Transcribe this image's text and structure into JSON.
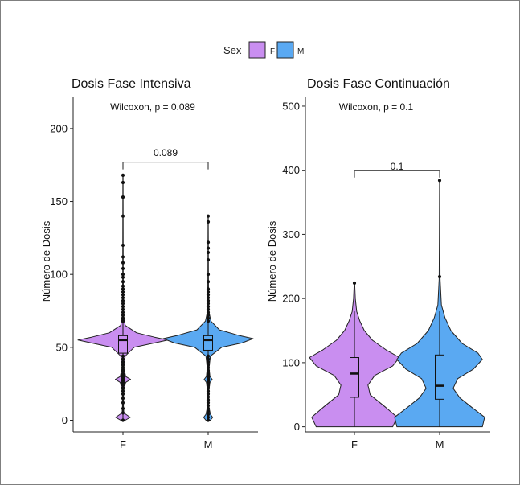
{
  "legend": {
    "title": "Sex",
    "entries": [
      {
        "label": "F",
        "color": "#c98ef0"
      },
      {
        "label": "M",
        "color": "#5aa9f2"
      }
    ],
    "position": "top"
  },
  "chart_data": [
    {
      "type": "violin",
      "title": "Dosis Fase Intensiva",
      "subtitle": "Wilcoxon, p = 0.089",
      "xlabel": "",
      "ylabel": "Número de Dosis",
      "categories": [
        "F",
        "M"
      ],
      "ylim": [
        -8,
        222
      ],
      "yticks": [
        0,
        50,
        100,
        150,
        200
      ],
      "bracket": {
        "label": "0.089",
        "y": 177
      },
      "groups": [
        {
          "name": "F",
          "color": "#c98ef0",
          "box": {
            "q1": 46,
            "median": 55,
            "q3": 58,
            "whisker_low": 0,
            "whisker_high": 168
          },
          "density_profile": [
            [
              0,
              0.05
            ],
            [
              2,
              0.16
            ],
            [
              5,
              0.02
            ],
            [
              10,
              0.01
            ],
            [
              20,
              0.015
            ],
            [
              26,
              0.06
            ],
            [
              28,
              0.17
            ],
            [
              30,
              0.06
            ],
            [
              36,
              0.02
            ],
            [
              44,
              0.05
            ],
            [
              50,
              0.25
            ],
            [
              53,
              0.7
            ],
            [
              55,
              1.0
            ],
            [
              57,
              0.7
            ],
            [
              60,
              0.3
            ],
            [
              65,
              0.05
            ],
            [
              72,
              0.015
            ],
            [
              80,
              0.01
            ],
            [
              100,
              0.006
            ],
            [
              130,
              0.004
            ],
            [
              168,
              0.002
            ]
          ],
          "outliers": [
            0,
            5,
            8,
            12,
            15,
            18,
            20,
            22,
            24,
            25,
            26,
            27,
            28,
            29,
            30,
            31,
            32,
            34,
            36,
            38,
            40,
            42,
            44,
            68,
            70,
            72,
            74,
            76,
            78,
            80,
            82,
            84,
            86,
            88,
            90,
            92,
            95,
            98,
            100,
            104,
            108,
            112,
            120,
            140,
            153,
            163,
            168
          ]
        },
        {
          "name": "M",
          "color": "#5aa9f2",
          "box": {
            "q1": 48,
            "median": 55,
            "q3": 58,
            "whisker_low": 0,
            "whisker_high": 140
          },
          "density_profile": [
            [
              0,
              0.05
            ],
            [
              2,
              0.1
            ],
            [
              4,
              0.05
            ],
            [
              10,
              0.01
            ],
            [
              20,
              0.015
            ],
            [
              26,
              0.04
            ],
            [
              28,
              0.09
            ],
            [
              30,
              0.04
            ],
            [
              36,
              0.02
            ],
            [
              44,
              0.05
            ],
            [
              50,
              0.3
            ],
            [
              53,
              0.75
            ],
            [
              56,
              1.0
            ],
            [
              58,
              0.7
            ],
            [
              62,
              0.25
            ],
            [
              68,
              0.06
            ],
            [
              74,
              0.02
            ],
            [
              80,
              0.01
            ],
            [
              100,
              0.005
            ],
            [
              140,
              0.002
            ]
          ],
          "outliers": [
            0,
            2,
            4,
            6,
            8,
            10,
            12,
            14,
            16,
            18,
            20,
            22,
            24,
            25,
            26,
            27,
            28,
            29,
            30,
            31,
            32,
            34,
            36,
            38,
            40,
            42,
            44,
            68,
            70,
            72,
            74,
            76,
            78,
            80,
            82,
            84,
            86,
            88,
            90,
            95,
            100,
            110,
            115,
            118,
            122,
            136,
            140
          ]
        }
      ]
    },
    {
      "type": "violin",
      "title": "Dosis Fase Continuación",
      "subtitle": "Wilcoxon, p = 0.1",
      "xlabel": "",
      "ylabel": "Número de Dosis",
      "categories": [
        "F",
        "M"
      ],
      "ylim": [
        -8,
        515
      ],
      "yticks": [
        0,
        100,
        200,
        300,
        400,
        500
      ],
      "bracket": {
        "label": "0.1",
        "y": 400
      },
      "groups": [
        {
          "name": "F",
          "color": "#c98ef0",
          "box": {
            "q1": 46,
            "median": 83,
            "q3": 108,
            "whisker_low": 0,
            "whisker_high": 180
          },
          "density_profile": [
            [
              0,
              0.85
            ],
            [
              15,
              0.95
            ],
            [
              30,
              0.7
            ],
            [
              50,
              0.35
            ],
            [
              65,
              0.3
            ],
            [
              80,
              0.45
            ],
            [
              95,
              0.85
            ],
            [
              108,
              1.0
            ],
            [
              120,
              0.7
            ],
            [
              135,
              0.4
            ],
            [
              150,
              0.22
            ],
            [
              165,
              0.12
            ],
            [
              180,
              0.05
            ],
            [
              200,
              0.02
            ],
            [
              224,
              0.005
            ]
          ],
          "outliers": [
            224
          ]
        },
        {
          "name": "M",
          "color": "#5aa9f2",
          "box": {
            "q1": 43,
            "median": 64,
            "q3": 112,
            "whisker_low": 0,
            "whisker_high": 180
          },
          "density_profile": [
            [
              0,
              0.95
            ],
            [
              15,
              1.0
            ],
            [
              30,
              0.72
            ],
            [
              45,
              0.45
            ],
            [
              60,
              0.3
            ],
            [
              75,
              0.4
            ],
            [
              90,
              0.75
            ],
            [
              105,
              0.95
            ],
            [
              115,
              0.85
            ],
            [
              130,
              0.5
            ],
            [
              150,
              0.25
            ],
            [
              170,
              0.12
            ],
            [
              190,
              0.04
            ],
            [
              230,
              0.01
            ],
            [
              300,
              0.005
            ],
            [
              384,
              0.002
            ]
          ],
          "outliers": [
            234,
            384
          ]
        }
      ]
    }
  ]
}
